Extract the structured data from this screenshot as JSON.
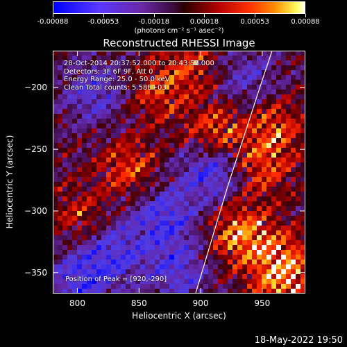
{
  "colorbar": {
    "ticks": [
      "-0.00088",
      "-0.00053",
      "-0.00018",
      "0.00018",
      "0.00053",
      "0.00088"
    ],
    "unit": "(photons cm⁻² s⁻¹ asec⁻²)"
  },
  "chart_data": {
    "type": "heatmap",
    "title": "Reconstructed RHESSI Image",
    "xlabel": "Heliocentric X (arcsec)",
    "ylabel": "Heliocentric Y (arcsec)",
    "xlim": [
      780,
      985
    ],
    "ylim": [
      -367,
      -170
    ],
    "xticks": [
      800,
      850,
      900,
      950
    ],
    "yticks": [
      -200,
      -250,
      -300,
      -350
    ],
    "clim": [
      -0.00088,
      0.00088
    ],
    "limb_curve": [
      [
        895,
        -370
      ],
      [
        910,
        -320
      ],
      [
        922,
        -280
      ],
      [
        935,
        -240
      ],
      [
        948,
        -200
      ],
      [
        958,
        -170
      ]
    ],
    "peak": [
      920,
      -290
    ]
  },
  "info": {
    "line1": "28-Oct-2014 20:37:52.000 to 20:43:52.000",
    "line2": "Detectors: 3F 6F 9F, Att 0",
    "line3": "Energy Range: 25.0 - 50.0 keV",
    "line4": "Clean     Total counts: 5.58E+03"
  },
  "peak_label": "Position of Peak = [920,-290]",
  "footer": "18-May-2022 19:50"
}
